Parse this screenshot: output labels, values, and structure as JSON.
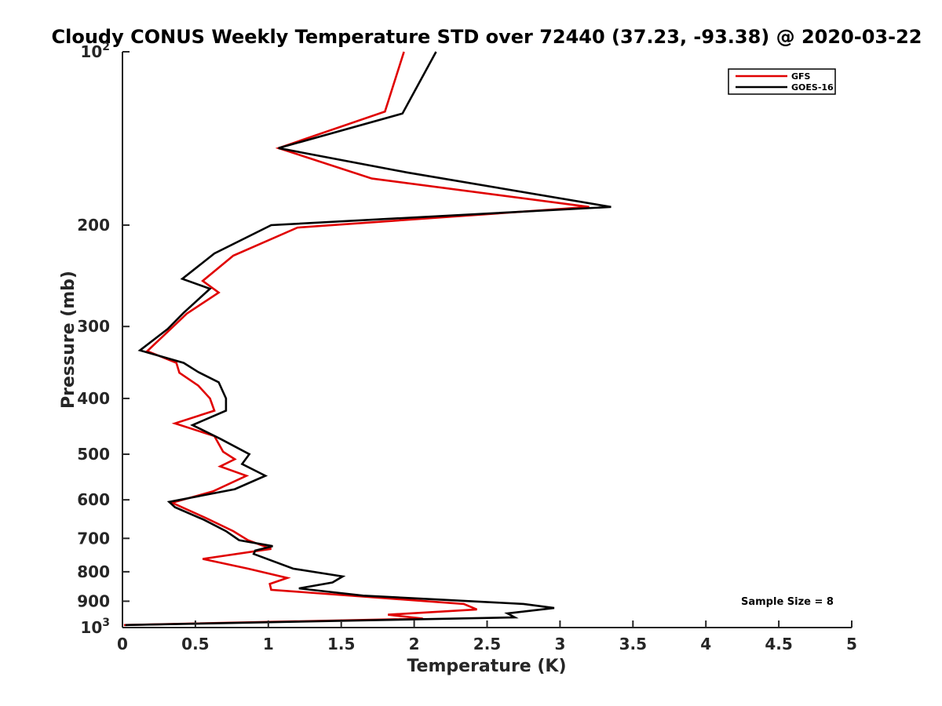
{
  "chart_data": {
    "type": "line",
    "title": "Cloudy CONUS Weekly Temperature STD over 72440 (37.23, -93.38) @ 2020-03-22",
    "xlabel": "Temperature (K)",
    "ylabel": "Pressure (mb)",
    "xlim": [
      0,
      5
    ],
    "ylim": [
      100,
      1000
    ],
    "y_scale": "log",
    "y_reversed": true,
    "grid": false,
    "legend_position": "top-right",
    "x_ticks": [
      {
        "value": 0,
        "label": "0"
      },
      {
        "value": 0.5,
        "label": "0.5"
      },
      {
        "value": 1,
        "label": "1"
      },
      {
        "value": 1.5,
        "label": "1.5"
      },
      {
        "value": 2,
        "label": "2"
      },
      {
        "value": 2.5,
        "label": "2.5"
      },
      {
        "value": 3,
        "label": "3"
      },
      {
        "value": 3.5,
        "label": "3.5"
      },
      {
        "value": 4,
        "label": "4"
      },
      {
        "value": 4.5,
        "label": "4.5"
      },
      {
        "value": 5,
        "label": "5"
      }
    ],
    "y_ticks": [
      {
        "value": 100,
        "base": "10",
        "exp": "2"
      },
      {
        "value": 200,
        "label": "200"
      },
      {
        "value": 300,
        "label": "300"
      },
      {
        "value": 400,
        "label": "400"
      },
      {
        "value": 500,
        "label": "500"
      },
      {
        "value": 600,
        "label": "600"
      },
      {
        "value": 700,
        "label": "700"
      },
      {
        "value": 800,
        "label": "800"
      },
      {
        "value": 900,
        "label": "900"
      },
      {
        "value": 1000,
        "base": "10",
        "exp": "3"
      }
    ],
    "annotation": "Sample Size = 8",
    "series": [
      {
        "name": "GFS",
        "color": "#e00000",
        "x": [
          1.93,
          1.8,
          1.07,
          1.71,
          3.2,
          1.2,
          0.76,
          0.55,
          0.66,
          0.44,
          0.33,
          0.17,
          0.37,
          0.39,
          0.52,
          0.6,
          0.63,
          0.36,
          0.63,
          0.69,
          0.77,
          0.67,
          0.85,
          0.62,
          0.34,
          0.57,
          0.76,
          0.86,
          1.02,
          0.55,
          0.86,
          1.13,
          1.01,
          1.02,
          2.34,
          2.43,
          1.82,
          2.06,
          0.01
        ],
        "y": [
          100,
          127,
          147,
          166,
          186,
          202,
          226,
          250,
          262,
          285,
          303,
          331,
          347,
          361,
          380,
          400,
          420,
          442,
          465,
          495,
          510,
          525,
          545,
          580,
          607,
          645,
          680,
          705,
          730,
          760,
          790,
          820,
          840,
          860,
          910,
          930,
          950,
          965,
          990
        ]
      },
      {
        "name": "GOES-16",
        "color": "#000000",
        "x": [
          2.15,
          1.92,
          1.07,
          1.95,
          3.35,
          1.02,
          0.63,
          0.41,
          0.6,
          0.42,
          0.31,
          0.12,
          0.42,
          0.52,
          0.66,
          0.71,
          0.71,
          0.48,
          0.67,
          0.87,
          0.82,
          0.98,
          0.77,
          0.32,
          0.36,
          0.56,
          0.71,
          0.8,
          1.03,
          0.91,
          0.9,
          1.17,
          1.51,
          1.44,
          1.21,
          1.65,
          2.75,
          2.96,
          2.64,
          2.69,
          0.02
        ],
        "y": [
          100,
          128,
          147,
          162,
          186,
          200,
          224,
          248,
          258,
          284,
          303,
          330,
          347,
          360,
          375,
          400,
          420,
          445,
          470,
          500,
          520,
          545,
          575,
          605,
          618,
          650,
          680,
          705,
          722,
          735,
          745,
          790,
          815,
          835,
          855,
          880,
          910,
          925,
          945,
          960,
          990
        ]
      }
    ]
  }
}
